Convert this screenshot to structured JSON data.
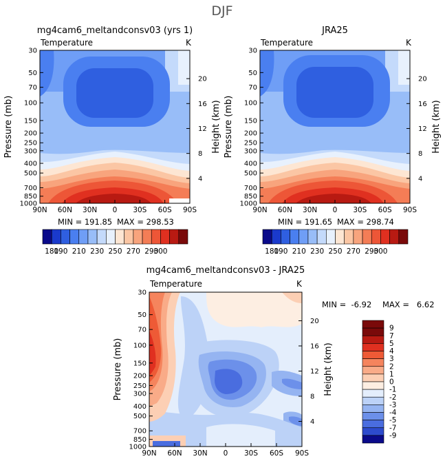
{
  "figure": {
    "title": "DJF"
  },
  "chart_data": [
    {
      "type": "heatmap",
      "title": "mg4cam6_meltandconsv03 (yrs 1)",
      "variable": "Temperature",
      "units": "K",
      "ylabel": "Pressure (mb)",
      "ylabel_right": "Height (km)",
      "x_ticks": [
        "90N",
        "60N",
        "30N",
        "0",
        "30S",
        "60S",
        "90S"
      ],
      "y_ticks": [
        "30",
        "50",
        "70",
        "100",
        "150",
        "200",
        "250",
        "300",
        "400",
        "500",
        "700",
        "850",
        "1000"
      ],
      "height_ticks": [
        "4",
        "8",
        "12",
        "16",
        "20"
      ],
      "min_label": "MIN = 191.85",
      "max_label": "MAX = 298.53",
      "colorbar_levels": [
        "180",
        "190",
        "210",
        "230",
        "250",
        "270",
        "290",
        "300"
      ]
    },
    {
      "type": "heatmap",
      "title": "JRA25",
      "variable": "Temperature",
      "units": "K",
      "ylabel": "Pressure (mb)",
      "ylabel_right": "Height (km)",
      "x_ticks": [
        "90N",
        "60N",
        "30N",
        "0",
        "30S",
        "60S",
        "90S"
      ],
      "y_ticks": [
        "30",
        "50",
        "70",
        "100",
        "150",
        "200",
        "250",
        "300",
        "400",
        "500",
        "700",
        "850",
        "1000"
      ],
      "height_ticks": [
        "4",
        "8",
        "12",
        "16",
        "20"
      ],
      "min_label": "MIN = 191.65",
      "max_label": "MAX = 298.74",
      "colorbar_levels": [
        "180",
        "190",
        "210",
        "230",
        "250",
        "270",
        "290",
        "300"
      ]
    },
    {
      "type": "heatmap",
      "title": "mg4cam6_meltandconsv03 - JRA25",
      "variable": "Temperature",
      "units": "K",
      "ylabel": "Pressure (mb)",
      "ylabel_right": "Height (km)",
      "x_ticks": [
        "90N",
        "60N",
        "30N",
        "0",
        "30S",
        "60S",
        "90S"
      ],
      "y_ticks": [
        "30",
        "50",
        "70",
        "100",
        "150",
        "200",
        "250",
        "300",
        "400",
        "500",
        "700",
        "850",
        "1000"
      ],
      "height_ticks": [
        "4",
        "8",
        "12",
        "16",
        "20"
      ],
      "min_label": "MIN =  -6.92",
      "max_label": "MAX =   6.62",
      "colorbar_levels": [
        "9",
        "7",
        "5",
        "4",
        "3",
        "2",
        "1",
        "0",
        "-1",
        "-2",
        "-3",
        "-4",
        "-5",
        "-7",
        "-9"
      ]
    }
  ],
  "colors": {
    "abs_scale": [
      "#0a0a8a",
      "#1a3acc",
      "#2f5fe0",
      "#4a7ff0",
      "#6f9ef6",
      "#98bdf8",
      "#c4dafb",
      "#e8f1fd",
      "#fde6d3",
      "#fbc6a4",
      "#f8a47d",
      "#f47d56",
      "#ed5637",
      "#e03020",
      "#b81a12",
      "#7a0a0a"
    ],
    "diff_scale": [
      "#7a0a0a",
      "#b81a12",
      "#e03020",
      "#ee5a36",
      "#f5845d",
      "#f9ab88",
      "#fccfb4",
      "#fdeee2",
      "#e4eefc",
      "#bcd2f7",
      "#95b4f1",
      "#6c90ea",
      "#4a6ddf",
      "#2d4bcd",
      "#0a0a8a"
    ]
  }
}
